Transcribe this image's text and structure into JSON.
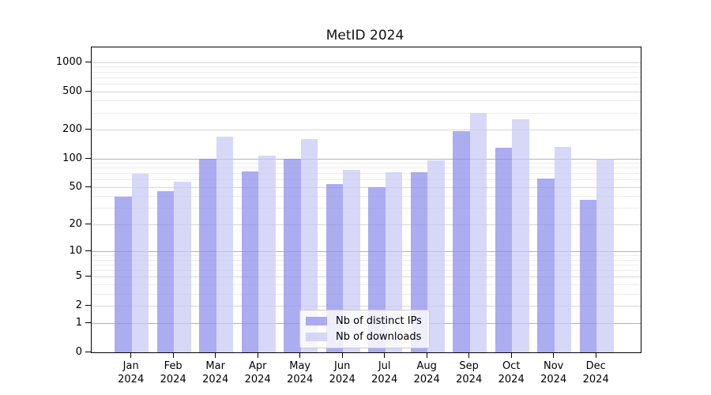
{
  "chart_data": {
    "type": "bar",
    "title": "MetID 2024",
    "scale": "log10(v+1)",
    "categories": [
      "Jan",
      "Feb",
      "Mar",
      "Apr",
      "May",
      "Jun",
      "Jul",
      "Aug",
      "Sep",
      "Oct",
      "Nov",
      "Dec"
    ],
    "year": "2024",
    "series": [
      {
        "name": "Nb of distinct IPs",
        "color": "rgba(140,140,235,0.72)",
        "values": [
          40,
          46,
          100,
          74,
          100,
          54,
          50,
          73,
          195,
          130,
          62,
          37
        ]
      },
      {
        "name": "Nb of downloads",
        "color": "rgba(200,200,244,0.72)",
        "values": [
          70,
          58,
          170,
          108,
          160,
          76,
          72,
          97,
          300,
          260,
          133,
          100
        ]
      }
    ],
    "yticks": [
      0,
      1,
      2,
      5,
      10,
      20,
      50,
      100,
      200,
      500,
      1000
    ],
    "minor_gridlines": [
      3,
      4,
      6,
      7,
      8,
      9,
      30,
      40,
      60,
      70,
      80,
      90,
      300,
      400,
      600,
      700,
      800,
      900
    ],
    "strong_gridlines": [
      1,
      10,
      100
    ],
    "ylim": [
      0,
      1440
    ],
    "legend_position": "lower-center",
    "grid_color_strong": "#b3b3b3",
    "grid_color_major": "#d6d6d6",
    "grid_color_minor": "#ececec",
    "axis_color": "#000000"
  }
}
